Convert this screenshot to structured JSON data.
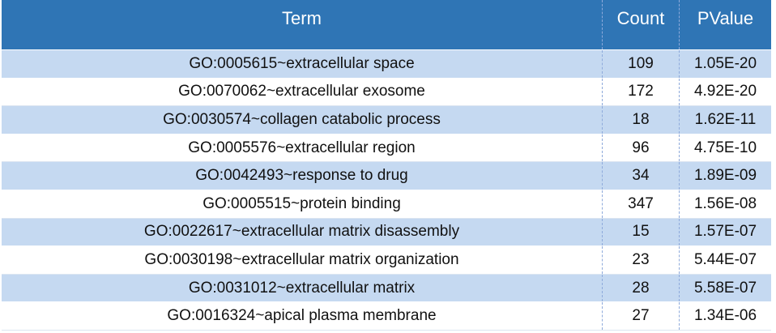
{
  "table": {
    "header": [
      "Term",
      "Count",
      "PValue"
    ],
    "rows": [
      [
        "GO:0005615~extracellular space",
        109,
        "1.05E-20"
      ],
      [
        "GO:0070062~extracellular exosome",
        172,
        "4.92E-20"
      ],
      [
        "GO:0030574~collagen catabolic process",
        18,
        "1.62E-11"
      ],
      [
        "GO:0005576~extracellular region",
        96,
        "4.75E-10"
      ],
      [
        "GO:0042493~response to drug",
        34,
        "1.89E-09"
      ],
      [
        "GO:0005515~protein binding",
        347,
        "1.56E-08"
      ],
      [
        "GO:0022617~extracellular matrix disassembly",
        15,
        "1.57E-07"
      ],
      [
        "GO:0030198~extracellular matrix organization",
        23,
        "5.44E-07"
      ],
      [
        "GO:0031012~extracellular matrix",
        28,
        "5.58E-07"
      ],
      [
        "GO:0016324~apical plasma membrane",
        27,
        "1.34E-06"
      ]
    ]
  }
}
